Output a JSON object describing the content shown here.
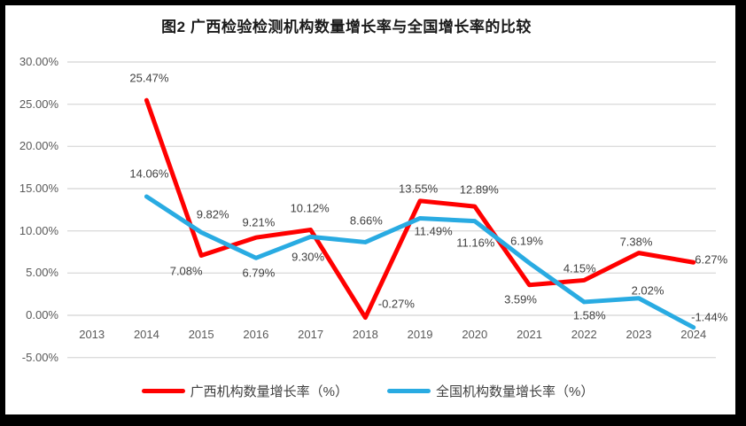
{
  "frame": {
    "background": "#ffffff",
    "border_color": "#000000"
  },
  "chart_data": {
    "type": "line",
    "title": "图2 广西检验检测机构数量增长率与全国增长率的比较",
    "categories": [
      "2013",
      "2014",
      "2015",
      "2016",
      "2017",
      "2018",
      "2019",
      "2020",
      "2021",
      "2022",
      "2023",
      "2024"
    ],
    "series": [
      {
        "name": "广西机构数量增长率（%）",
        "color": "#FF0000",
        "start_index": 1,
        "values": [
          25.47,
          7.08,
          9.21,
          10.12,
          -0.27,
          13.55,
          12.89,
          3.59,
          4.15,
          7.38,
          6.27
        ],
        "label_offsets": [
          [
            3,
            -25
          ],
          [
            -17,
            17
          ],
          [
            3,
            -17
          ],
          [
            -1,
            -25
          ],
          [
            35,
            -16
          ],
          [
            -2,
            -14
          ],
          [
            5,
            -19
          ],
          [
            -10,
            16
          ],
          [
            -5,
            -13
          ],
          [
            -3,
            -13
          ],
          [
            20,
            -3
          ]
        ]
      },
      {
        "name": "全国机构数量增长率（%）",
        "color": "#29ABE2",
        "start_index": 1,
        "values": [
          14.06,
          9.82,
          6.79,
          9.3,
          8.66,
          11.49,
          11.16,
          6.19,
          1.58,
          2.02,
          -1.44
        ],
        "label_offsets": [
          [
            3,
            -26
          ],
          [
            13,
            -20
          ],
          [
            3,
            17
          ],
          [
            -3,
            23
          ],
          [
            1,
            -24
          ],
          [
            15,
            15
          ],
          [
            1,
            24
          ],
          [
            -3,
            -25
          ],
          [
            6,
            15
          ],
          [
            10,
            -9
          ],
          [
            18,
            -12
          ]
        ]
      }
    ],
    "y_ticks": [
      30,
      25,
      20,
      15,
      10,
      5,
      0,
      -5
    ],
    "ylim": [
      -5,
      30
    ],
    "value_format": "0.00%",
    "grid": true,
    "legend_position": "bottom",
    "colors": {
      "gridline": "#DCDCDC",
      "axis_text": "#595959",
      "data_label_text": "#404040",
      "title_text": "#1A1A1A",
      "legend_text": "#404040"
    }
  }
}
